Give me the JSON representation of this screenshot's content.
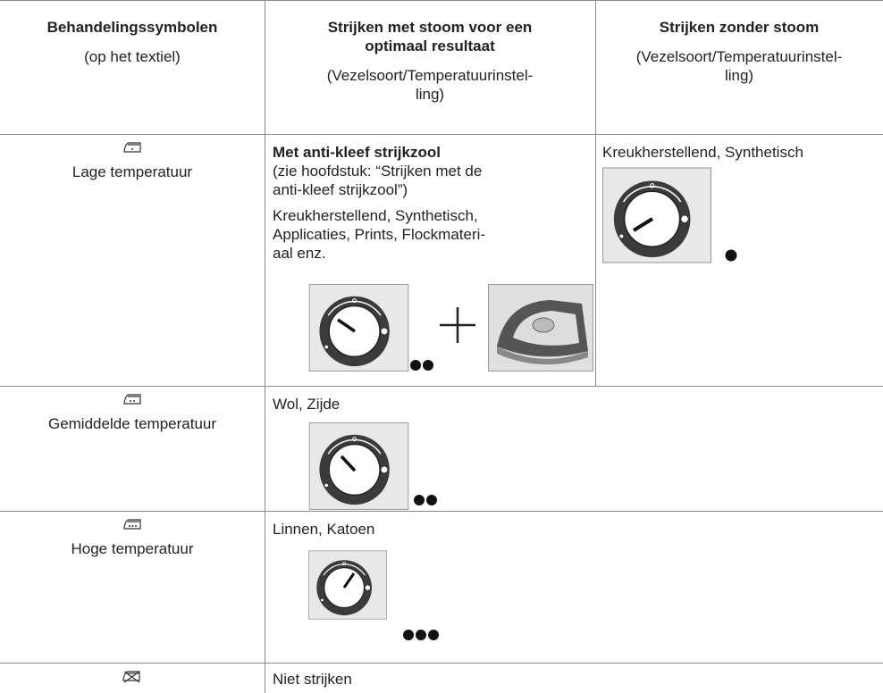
{
  "header": {
    "col1": {
      "title": "Behandelingssymbolen",
      "subtitle": "(op het textiel)"
    },
    "col2": {
      "title_lines": [
        "Strijken met stoom voor een",
        "optimaal resultaat"
      ],
      "subtitle_lines": [
        "(Vezelsoort/Temperatuurinstel-",
        "ling)"
      ]
    },
    "col3": {
      "title": "Strijken zonder stoom",
      "subtitle_lines": [
        "(Vezelsoort/Temperatuurinstel-",
        "ling)"
      ]
    }
  },
  "rows": [
    {
      "label": "Lage temperatuur",
      "steam": {
        "heading": "Met anti-kleef strijkzool",
        "note_lines": [
          "(zie hoofdstuk: “Strijken met de",
          "anti-kleef strijkzool”)"
        ],
        "fabric_lines": [
          "Kreukherstellend, Synthetisch,",
          "Applicaties, Prints, Flockmateri-",
          "aal enz."
        ]
      },
      "no_steam": "Kreukherstellend, Synthetisch"
    },
    {
      "label": "Gemiddelde temperatuur",
      "fabric": "Wol, Zijde"
    },
    {
      "label": "Hoge temperatuur",
      "fabric": "Linnen, Katoen"
    },
    {
      "fabric": "Niet strijken"
    }
  ]
}
